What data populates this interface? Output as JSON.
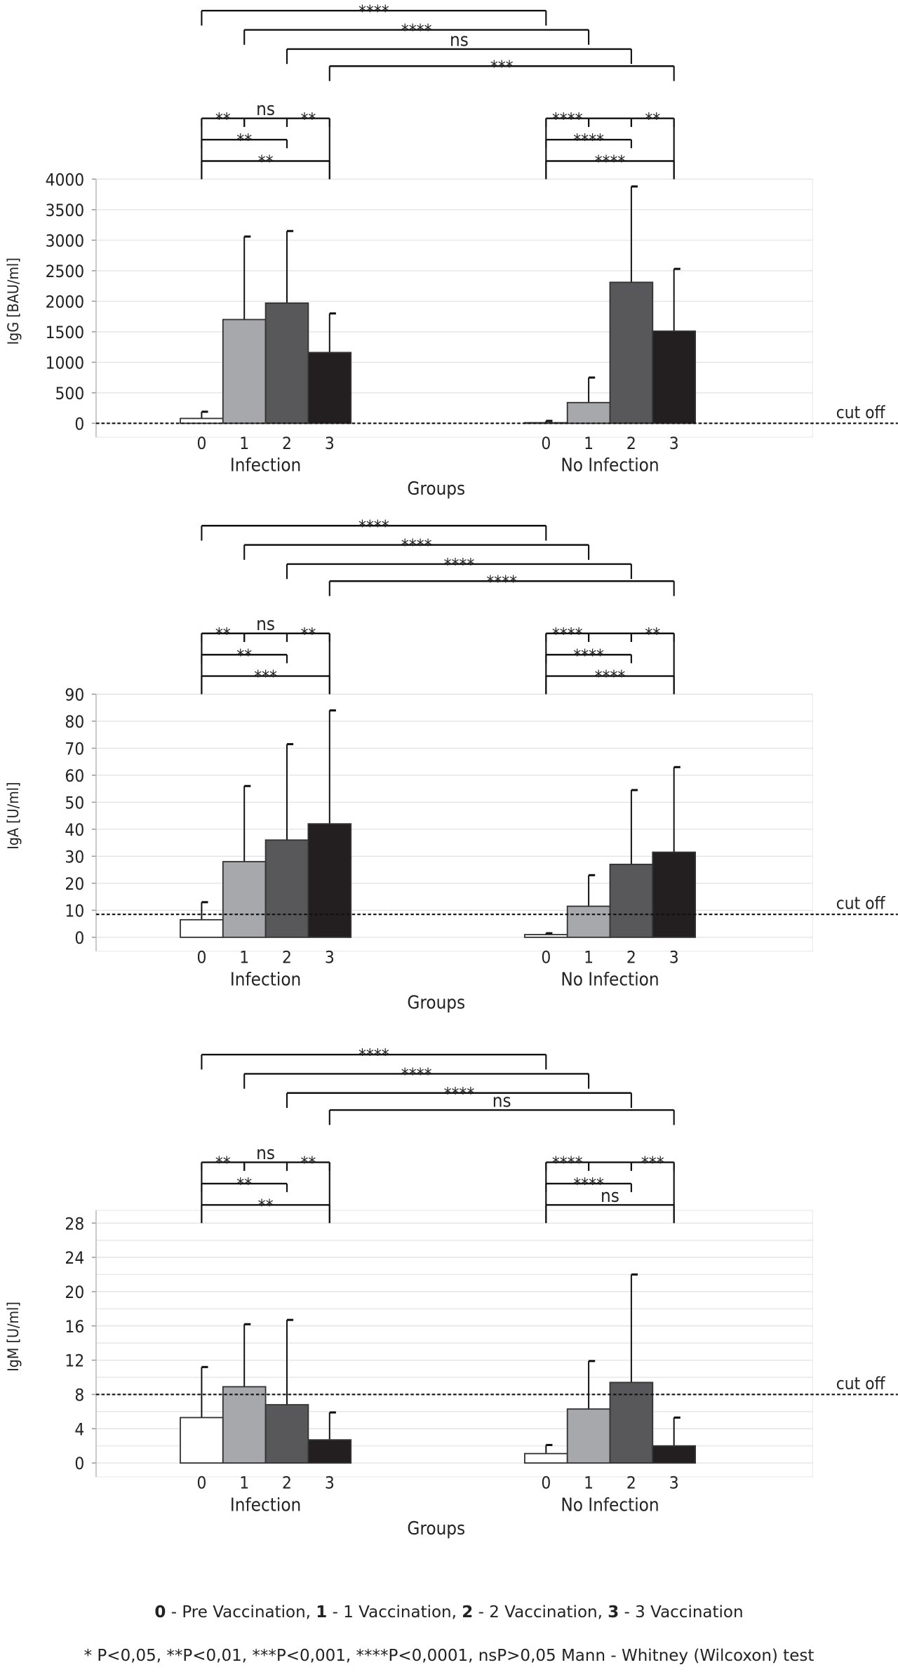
{
  "colors": {
    "bar0": "#ffffff",
    "bar1": "#a7a8ab",
    "bar2": "#58585a",
    "bar3": "#231f20",
    "grid": "#e2e2e2",
    "edge": "#333333"
  },
  "chart_data": [
    {
      "type": "bar",
      "ylabel": "IgG [BAU/ml]",
      "xlabel": "Groups",
      "ylim": [
        0,
        4000
      ],
      "yticks": [
        0,
        500,
        1000,
        1500,
        2000,
        2500,
        3000,
        3500,
        4000
      ],
      "grid": true,
      "cutoff": {
        "label": "cut off",
        "value": 0
      },
      "groups": [
        "Infection",
        "No Infection"
      ],
      "categories": [
        "0",
        "1",
        "2",
        "3"
      ],
      "values": [
        [
          80,
          1700,
          1970,
          1160
        ],
        [
          10,
          340,
          2310,
          1510
        ]
      ],
      "errors_upper": [
        [
          190,
          3060,
          3150,
          1800
        ],
        [
          40,
          750,
          3880,
          2530
        ]
      ],
      "between": [
        {
          "a": [
            0,
            0
          ],
          "b": [
            1,
            0
          ],
          "label": "****"
        },
        {
          "a": [
            0,
            1
          ],
          "b": [
            1,
            1
          ],
          "label": "****"
        },
        {
          "a": [
            0,
            2
          ],
          "b": [
            1,
            2
          ],
          "label": "ns"
        },
        {
          "a": [
            0,
            3
          ],
          "b": [
            1,
            3
          ],
          "label": "***"
        }
      ],
      "within": [
        [
          [
            "**",
            "ns",
            "**"
          ],
          "**",
          "**"
        ],
        [
          [
            "****",
            "",
            "**"
          ],
          "****",
          "****"
        ]
      ]
    },
    {
      "type": "bar",
      "ylabel": "IgA [U/ml]",
      "xlabel": "Groups",
      "ylim": [
        0,
        90
      ],
      "yticks": [
        0,
        10,
        20,
        30,
        40,
        50,
        60,
        70,
        80,
        90
      ],
      "grid": true,
      "cutoff": {
        "label": "cut off",
        "value": 8.5
      },
      "groups": [
        "Infection",
        "No Infection"
      ],
      "categories": [
        "0",
        "1",
        "2",
        "3"
      ],
      "values": [
        [
          6.5,
          28,
          36,
          42
        ],
        [
          1,
          11.5,
          27,
          31.5
        ]
      ],
      "errors_upper": [
        [
          13,
          56,
          71.5,
          84
        ],
        [
          1.5,
          23,
          54.5,
          63
        ]
      ],
      "between": [
        {
          "a": [
            0,
            0
          ],
          "b": [
            1,
            0
          ],
          "label": "****"
        },
        {
          "a": [
            0,
            1
          ],
          "b": [
            1,
            1
          ],
          "label": "****"
        },
        {
          "a": [
            0,
            2
          ],
          "b": [
            1,
            2
          ],
          "label": "****"
        },
        {
          "a": [
            0,
            3
          ],
          "b": [
            1,
            3
          ],
          "label": "****"
        }
      ],
      "within": [
        [
          [
            "**",
            "ns",
            "**"
          ],
          "**",
          "***"
        ],
        [
          [
            "****",
            "",
            "**"
          ],
          "****",
          "****"
        ]
      ]
    },
    {
      "type": "bar",
      "ylabel": "IgM [U/ml]",
      "xlabel": "Groups",
      "ylim": [
        0,
        29
      ],
      "yticks": [
        0,
        4,
        8,
        12,
        16,
        20,
        24,
        28
      ],
      "grid": true,
      "cutoff": {
        "label": "cut off",
        "value": 8
      },
      "groups": [
        "Infection",
        "No Infection"
      ],
      "categories": [
        "0",
        "1",
        "2",
        "3"
      ],
      "values": [
        [
          5.3,
          8.9,
          6.8,
          2.7
        ],
        [
          1.1,
          6.3,
          9.4,
          2
        ]
      ],
      "errors_upper": [
        [
          11.2,
          16.2,
          16.7,
          5.9
        ],
        [
          2.1,
          11.9,
          22,
          5.3
        ]
      ],
      "between": [
        {
          "a": [
            0,
            0
          ],
          "b": [
            1,
            0
          ],
          "label": "****"
        },
        {
          "a": [
            0,
            1
          ],
          "b": [
            1,
            1
          ],
          "label": "****"
        },
        {
          "a": [
            0,
            2
          ],
          "b": [
            1,
            2
          ],
          "label": "****"
        },
        {
          "a": [
            0,
            3
          ],
          "b": [
            1,
            3
          ],
          "label": "ns"
        }
      ],
      "within": [
        [
          [
            "**",
            "ns",
            "**"
          ],
          "**",
          "**"
        ],
        [
          [
            "****",
            "",
            "***"
          ],
          "****",
          "ns"
        ]
      ]
    }
  ],
  "legend": {
    "items": [
      {
        "key": "0",
        "text": " - Pre Vaccination, "
      },
      {
        "key": "1",
        "text": " - 1 Vaccination, "
      },
      {
        "key": "2",
        "text": " - 2 Vaccination, "
      },
      {
        "key": "3",
        "text": " - 3 Vaccination"
      }
    ],
    "significance": "* P<0,05, **P<0,01, ***P<0,001, ****P<0,0001, nsP>0,05 Mann - Whitney (Wilcoxon) test"
  }
}
